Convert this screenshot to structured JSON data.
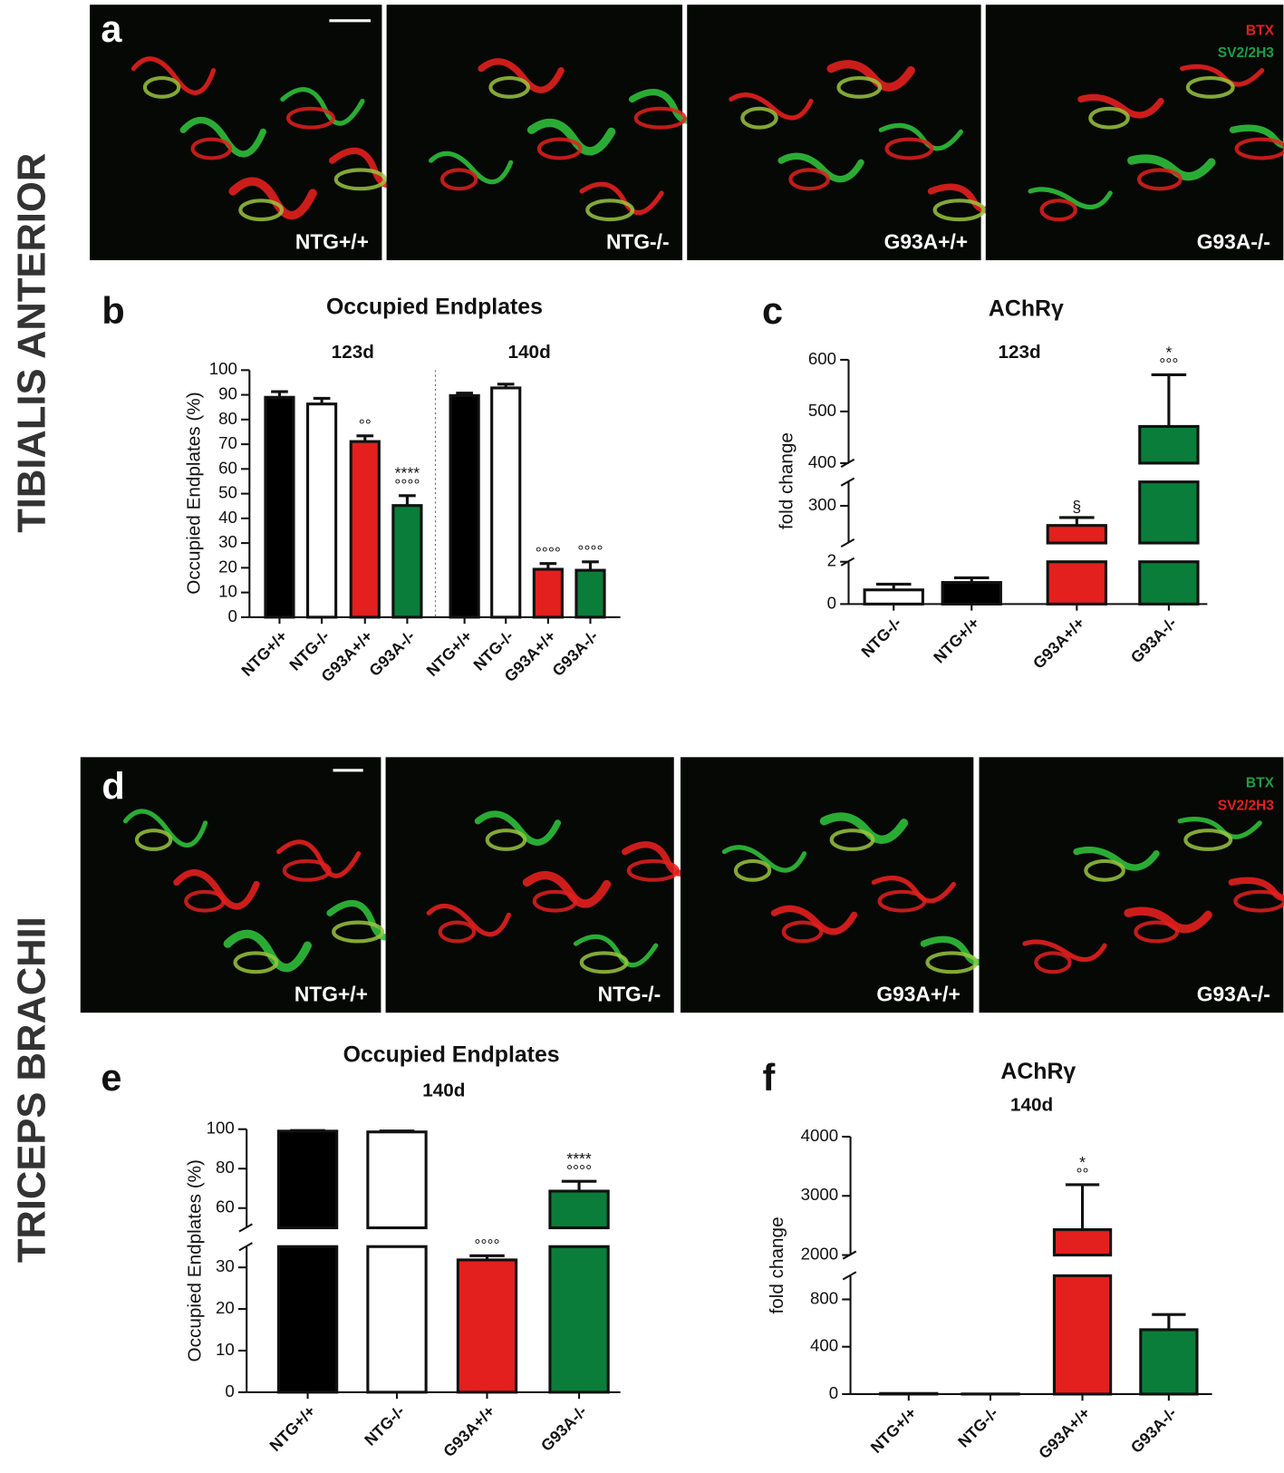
{
  "rows": [
    "TIBIALIS ANTERIOR",
    "TRICEPS BRACHII"
  ],
  "panel_letters": [
    "a",
    "b",
    "c",
    "d",
    "e",
    "f"
  ],
  "micrographs": [
    {
      "labels": [
        "NTG+/+",
        "NTG-/-",
        "G93A+/+",
        "G93A-/-"
      ],
      "legend": [
        {
          "text": "BTX",
          "color": "#e3201e"
        },
        {
          "text": "SV2/2H3",
          "color": "#1e9e45"
        }
      ]
    },
    {
      "labels": [
        "NTG+/+",
        "NTG-/-",
        "G93A+/+",
        "G93A-/-"
      ],
      "legend": [
        {
          "text": "BTX",
          "color": "#1e9e45"
        },
        {
          "text": "SV2/2H3",
          "color": "#e3201e"
        }
      ]
    }
  ],
  "chart_data": [
    {
      "type": "bar",
      "title": "Occupied Endplates",
      "groups": [
        "123d",
        "140d"
      ],
      "y_label": "Occupied Endplates (%)",
      "categories": [
        "NTG+/+",
        "NTG-/-",
        "G93A+/+",
        "G93A-/-",
        "NTG+/+",
        "NTG-/-",
        "G93A+/+",
        "G93A-/-"
      ],
      "values": [
        89,
        86.3,
        71.1,
        45.2,
        89.7,
        92.8,
        19.4,
        19
      ],
      "errors": [
        2.3,
        2.3,
        2.3,
        4,
        1,
        1.5,
        2.3,
        3.4
      ],
      "colors": [
        "#000000",
        "#ffffff",
        "#e3201e",
        "#0b7d3a",
        "#000000",
        "#ffffff",
        "#e3201e",
        "#0b7d3a"
      ],
      "markers": [
        null,
        null,
        [
          "°°"
        ],
        [
          "****",
          "°°°°"
        ],
        null,
        null,
        [
          "°°°°"
        ],
        [
          "°°°°"
        ]
      ],
      "ylim": [
        0,
        100
      ],
      "yticks": [
        0,
        10,
        20,
        30,
        40,
        50,
        60,
        70,
        80,
        90,
        100
      ]
    },
    {
      "type": "bar",
      "title": "AChRγ",
      "subtitle": "123d",
      "y_label": "fold change",
      "categories": [
        "NTG-/-",
        "NTG+/+",
        "G93A+/+",
        "G93A-/-"
      ],
      "values": [
        0.67,
        1.02,
        263,
        471
      ],
      "errors": [
        0.27,
        0.22,
        15,
        100
      ],
      "colors": [
        "#ffffff",
        "#000000",
        "#e3201e",
        "#0b7d3a"
      ],
      "markers": [
        null,
        null,
        [
          "§"
        ],
        [
          "*",
          "°°°"
        ]
      ],
      "ylim_segments": [
        [
          0,
          2
        ],
        [
          230,
          345
        ],
        [
          400,
          600
        ]
      ],
      "yticks": [
        0,
        2,
        300,
        400,
        500,
        600
      ]
    },
    {
      "type": "bar",
      "title": "Occupied Endplates",
      "subtitle": "140d",
      "y_label": "Occupied Endplates (%)",
      "categories": [
        "NTG+/+",
        "NTG-/-",
        "G93A+/+",
        "G93A-/-"
      ],
      "values": [
        99,
        98.6,
        31.8,
        68.6
      ],
      "errors": [
        0.3,
        0.5,
        1,
        5
      ],
      "colors": [
        "#000000",
        "#ffffff",
        "#e3201e",
        "#0b7d3a"
      ],
      "markers": [
        null,
        null,
        [
          "°°°°"
        ],
        [
          "****",
          "°°°°"
        ]
      ],
      "ylim_segments": [
        [
          0,
          35
        ],
        [
          50,
          100
        ]
      ],
      "yticks": [
        0,
        10,
        20,
        30,
        60,
        80,
        100
      ]
    },
    {
      "type": "bar",
      "title": "AChRγ",
      "subtitle": "140d",
      "y_label": "fold change",
      "categories": [
        "NTG+/+",
        "NTG-/-",
        "G93A+/+",
        "G93A-/-"
      ],
      "values": [
        5,
        1,
        2429,
        544
      ],
      "errors": [
        0,
        0,
        760,
        128
      ],
      "colors": [
        "#000000",
        "#ffffff",
        "#e3201e",
        "#0b7d3a"
      ],
      "markers": [
        null,
        null,
        [
          "*",
          "°°"
        ],
        null
      ],
      "ylim_segments": [
        [
          0,
          1000
        ],
        [
          2000,
          4000
        ]
      ],
      "yticks": [
        0,
        400,
        800,
        2000,
        3000,
        4000
      ]
    }
  ]
}
